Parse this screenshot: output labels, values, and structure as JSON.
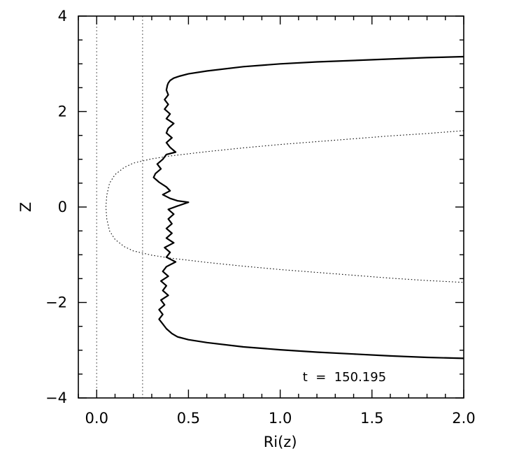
{
  "chart_data": {
    "type": "line",
    "title": "",
    "xlabel": "Ri(z)",
    "ylabel": "Z",
    "xlim": [
      -0.1,
      2.0
    ],
    "ylim": [
      -4,
      4
    ],
    "x_ticks": [
      {
        "value": 0.0,
        "label": "0.0"
      },
      {
        "value": 0.5,
        "label": "0.5"
      },
      {
        "value": 1.0,
        "label": "1.0"
      },
      {
        "value": 1.5,
        "label": "1.5"
      },
      {
        "value": 2.0,
        "label": "2.0"
      }
    ],
    "y_ticks": [
      {
        "value": -4,
        "label": "−4"
      },
      {
        "value": -2,
        "label": "−2"
      },
      {
        "value": 0,
        "label": "0"
      },
      {
        "value": 2,
        "label": "2"
      },
      {
        "value": 4,
        "label": "4"
      }
    ],
    "grid": false,
    "annotation": "t  =  150.195",
    "reference_lines": [
      {
        "x": 0.0,
        "style": "dotted"
      },
      {
        "x": 0.25,
        "style": "dotted"
      }
    ],
    "series": [
      {
        "style": "solid",
        "color": "#000000",
        "points": [
          [
            2.0,
            3.15
          ],
          [
            1.8,
            3.13
          ],
          [
            1.6,
            3.1
          ],
          [
            1.4,
            3.07
          ],
          [
            1.2,
            3.04
          ],
          [
            1.0,
            3.0
          ],
          [
            0.8,
            2.94
          ],
          [
            0.6,
            2.85
          ],
          [
            0.5,
            2.79
          ],
          [
            0.45,
            2.74
          ],
          [
            0.42,
            2.7
          ],
          [
            0.4,
            2.65
          ],
          [
            0.39,
            2.6
          ],
          [
            0.385,
            2.55
          ],
          [
            0.38,
            2.45
          ],
          [
            0.39,
            2.35
          ],
          [
            0.37,
            2.25
          ],
          [
            0.39,
            2.15
          ],
          [
            0.37,
            2.05
          ],
          [
            0.4,
            1.95
          ],
          [
            0.38,
            1.85
          ],
          [
            0.42,
            1.75
          ],
          [
            0.39,
            1.65
          ],
          [
            0.38,
            1.55
          ],
          [
            0.41,
            1.45
          ],
          [
            0.38,
            1.35
          ],
          [
            0.4,
            1.25
          ],
          [
            0.43,
            1.15
          ],
          [
            0.38,
            1.1
          ],
          [
            0.36,
            1.0
          ],
          [
            0.33,
            0.9
          ],
          [
            0.35,
            0.8
          ],
          [
            0.32,
            0.7
          ],
          [
            0.31,
            0.62
          ],
          [
            0.34,
            0.52
          ],
          [
            0.38,
            0.42
          ],
          [
            0.4,
            0.34
          ],
          [
            0.36,
            0.26
          ],
          [
            0.4,
            0.18
          ],
          [
            0.44,
            0.13
          ],
          [
            0.5,
            0.1
          ],
          [
            0.44,
            0.02
          ],
          [
            0.39,
            -0.05
          ],
          [
            0.42,
            -0.15
          ],
          [
            0.39,
            -0.25
          ],
          [
            0.41,
            -0.35
          ],
          [
            0.38,
            -0.45
          ],
          [
            0.41,
            -0.55
          ],
          [
            0.38,
            -0.65
          ],
          [
            0.42,
            -0.75
          ],
          [
            0.37,
            -0.85
          ],
          [
            0.4,
            -0.95
          ],
          [
            0.38,
            -1.05
          ],
          [
            0.43,
            -1.15
          ],
          [
            0.38,
            -1.25
          ],
          [
            0.36,
            -1.35
          ],
          [
            0.39,
            -1.45
          ],
          [
            0.35,
            -1.55
          ],
          [
            0.38,
            -1.65
          ],
          [
            0.36,
            -1.75
          ],
          [
            0.39,
            -1.85
          ],
          [
            0.35,
            -1.95
          ],
          [
            0.37,
            -2.05
          ],
          [
            0.34,
            -2.15
          ],
          [
            0.36,
            -2.25
          ],
          [
            0.34,
            -2.35
          ],
          [
            0.36,
            -2.45
          ],
          [
            0.38,
            -2.55
          ],
          [
            0.41,
            -2.65
          ],
          [
            0.44,
            -2.72
          ],
          [
            0.5,
            -2.78
          ],
          [
            0.6,
            -2.84
          ],
          [
            0.8,
            -2.93
          ],
          [
            1.0,
            -2.99
          ],
          [
            1.2,
            -3.04
          ],
          [
            1.4,
            -3.08
          ],
          [
            1.6,
            -3.12
          ],
          [
            1.8,
            -3.15
          ],
          [
            2.0,
            -3.17
          ]
        ]
      },
      {
        "style": "dotted",
        "color": "#000000",
        "points": [
          [
            2.0,
            1.6
          ],
          [
            1.8,
            1.54
          ],
          [
            1.6,
            1.49
          ],
          [
            1.4,
            1.43
          ],
          [
            1.2,
            1.37
          ],
          [
            1.0,
            1.31
          ],
          [
            0.8,
            1.24
          ],
          [
            0.6,
            1.16
          ],
          [
            0.4,
            1.07
          ],
          [
            0.3,
            1.01
          ],
          [
            0.2,
            0.92
          ],
          [
            0.15,
            0.83
          ],
          [
            0.1,
            0.68
          ],
          [
            0.07,
            0.5
          ],
          [
            0.055,
            0.25
          ],
          [
            0.05,
            0.0
          ],
          [
            0.055,
            -0.25
          ],
          [
            0.07,
            -0.5
          ],
          [
            0.1,
            -0.68
          ],
          [
            0.15,
            -0.83
          ],
          [
            0.2,
            -0.92
          ],
          [
            0.3,
            -1.01
          ],
          [
            0.4,
            -1.07
          ],
          [
            0.6,
            -1.16
          ],
          [
            0.8,
            -1.24
          ],
          [
            1.0,
            -1.31
          ],
          [
            1.2,
            -1.37
          ],
          [
            1.4,
            -1.43
          ],
          [
            1.6,
            -1.49
          ],
          [
            1.8,
            -1.54
          ],
          [
            2.0,
            -1.58
          ]
        ]
      }
    ]
  }
}
